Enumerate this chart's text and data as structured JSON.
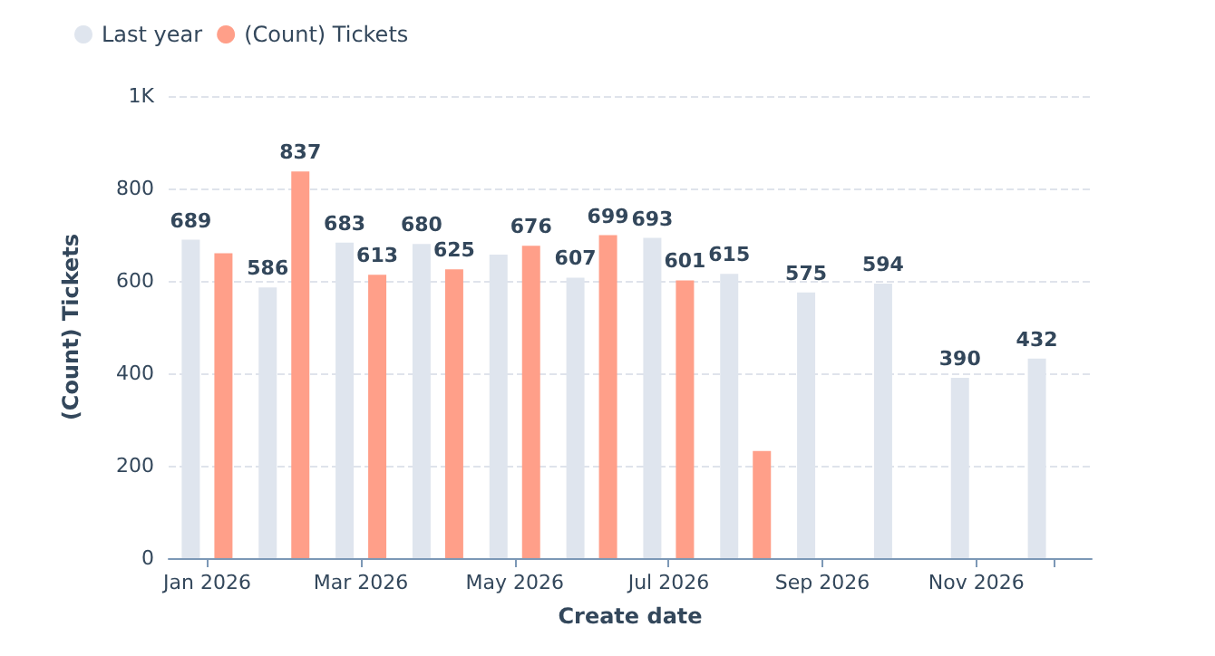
{
  "chart_data": {
    "type": "bar",
    "xlabel": "Create date",
    "ylabel": "(Count) Tickets",
    "categories": [
      "Jan 2026",
      null,
      "Mar 2026",
      null,
      "May 2026",
      null,
      "Jul 2026",
      null,
      "Sep 2026",
      null,
      "Nov 2026",
      null
    ],
    "series": [
      {
        "name": "Last year",
        "color": "#dfe5ee",
        "values": [
          689,
          586,
          683,
          680,
          657,
          607,
          693,
          615,
          575,
          594,
          390,
          432
        ],
        "value_labels": [
          "689",
          "586",
          "683",
          "680",
          null,
          "607",
          "693",
          "615",
          "575",
          "594",
          "390",
          "432"
        ]
      },
      {
        "name": "(Count) Tickets",
        "color": "#ff9f89",
        "values": [
          660,
          837,
          613,
          625,
          676,
          699,
          601,
          232,
          null,
          null,
          null,
          null
        ],
        "value_labels": [
          null,
          "837",
          "613",
          "625",
          "676",
          "699",
          "601",
          null,
          null,
          null,
          null,
          null
        ]
      }
    ],
    "ylim": [
      0,
      1000
    ],
    "yticks": [
      0,
      200,
      400,
      600,
      800,
      {
        "value": 1000,
        "label": "1K"
      }
    ],
    "grid": "y",
    "legend": "top left"
  }
}
